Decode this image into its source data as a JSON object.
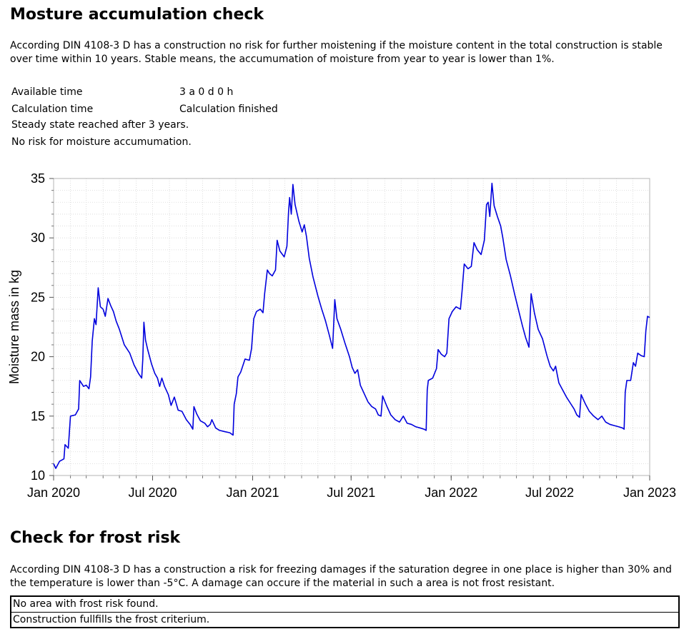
{
  "moisture": {
    "title": "Mosture accumulation check",
    "description": "According DIN 4108-3 D has a construction no risk for further moistening if the moisture content in the total construction is stable over time within 10 years. Stable means, the accumumation of moisture from year to year is lower than 1%.",
    "available_time_label": "Available time",
    "available_time_value": "3 a 0 d 0 h",
    "calc_time_label": "Calculation time",
    "calc_time_value": "Calculation finished",
    "steady_state": "Steady state reached after 3 years.",
    "risk_result": "No risk for moisture accumumation."
  },
  "chart_data": {
    "type": "line",
    "ylabel": "Moisture mass in kg",
    "xlabel": "",
    "ylim": [
      10,
      35
    ],
    "yticks": [
      10,
      15,
      20,
      25,
      30,
      35
    ],
    "x_range": [
      "2020-01-01",
      "2023-01-01"
    ],
    "x_ticks": [
      {
        "date": "2020-01-01",
        "label": "Jan 2020"
      },
      {
        "date": "2020-07-01",
        "label": "Jul 2020"
      },
      {
        "date": "2021-01-01",
        "label": "Jan 2021"
      },
      {
        "date": "2021-07-01",
        "label": "Jul 2021"
      },
      {
        "date": "2022-01-01",
        "label": "Jan 2022"
      },
      {
        "date": "2022-07-01",
        "label": "Jul 2022"
      },
      {
        "date": "2023-01-01",
        "label": "Jan 2023"
      }
    ],
    "grid": true,
    "line_color": "#0000dd",
    "series": [
      {
        "points": [
          [
            "2020-01-01",
            11.0
          ],
          [
            "2020-01-05",
            10.6
          ],
          [
            "2020-01-12",
            11.2
          ],
          [
            "2020-01-20",
            11.4
          ],
          [
            "2020-01-22",
            12.6
          ],
          [
            "2020-01-28",
            12.3
          ],
          [
            "2020-02-01",
            15.0
          ],
          [
            "2020-02-10",
            15.1
          ],
          [
            "2020-02-16",
            15.6
          ],
          [
            "2020-02-18",
            18.0
          ],
          [
            "2020-02-25",
            17.5
          ],
          [
            "2020-03-01",
            17.6
          ],
          [
            "2020-03-06",
            17.3
          ],
          [
            "2020-03-09",
            18.3
          ],
          [
            "2020-03-12",
            21.3
          ],
          [
            "2020-03-16",
            23.2
          ],
          [
            "2020-03-19",
            22.7
          ],
          [
            "2020-03-23",
            25.8
          ],
          [
            "2020-03-27",
            24.2
          ],
          [
            "2020-04-01",
            24.0
          ],
          [
            "2020-04-05",
            23.4
          ],
          [
            "2020-04-10",
            24.9
          ],
          [
            "2020-04-15",
            24.3
          ],
          [
            "2020-04-20",
            23.8
          ],
          [
            "2020-04-25",
            23.0
          ],
          [
            "2020-05-01",
            22.3
          ],
          [
            "2020-05-10",
            21.0
          ],
          [
            "2020-05-20",
            20.3
          ],
          [
            "2020-05-28",
            19.3
          ],
          [
            "2020-06-05",
            18.6
          ],
          [
            "2020-06-11",
            18.2
          ],
          [
            "2020-06-13",
            19.8
          ],
          [
            "2020-06-15",
            22.9
          ],
          [
            "2020-06-18",
            21.4
          ],
          [
            "2020-06-22",
            20.6
          ],
          [
            "2020-06-29",
            19.4
          ],
          [
            "2020-07-05",
            18.6
          ],
          [
            "2020-07-10",
            18.2
          ],
          [
            "2020-07-14",
            17.5
          ],
          [
            "2020-07-18",
            18.2
          ],
          [
            "2020-07-23",
            17.5
          ],
          [
            "2020-07-30",
            16.8
          ],
          [
            "2020-08-04",
            15.9
          ],
          [
            "2020-08-10",
            16.6
          ],
          [
            "2020-08-17",
            15.5
          ],
          [
            "2020-08-24",
            15.4
          ],
          [
            "2020-09-01",
            14.7
          ],
          [
            "2020-09-08",
            14.3
          ],
          [
            "2020-09-13",
            13.9
          ],
          [
            "2020-09-15",
            15.8
          ],
          [
            "2020-09-20",
            15.2
          ],
          [
            "2020-09-27",
            14.6
          ],
          [
            "2020-10-05",
            14.4
          ],
          [
            "2020-10-10",
            14.1
          ],
          [
            "2020-10-15",
            14.3
          ],
          [
            "2020-10-18",
            14.7
          ],
          [
            "2020-10-25",
            14.0
          ],
          [
            "2020-11-01",
            13.8
          ],
          [
            "2020-11-10",
            13.7
          ],
          [
            "2020-11-20",
            13.6
          ],
          [
            "2020-11-26",
            13.4
          ],
          [
            "2020-11-28",
            16.0
          ],
          [
            "2020-12-02",
            16.9
          ],
          [
            "2020-12-05",
            18.3
          ],
          [
            "2020-12-10",
            18.7
          ],
          [
            "2020-12-18",
            19.8
          ],
          [
            "2020-12-26",
            19.7
          ],
          [
            "2020-12-30",
            20.7
          ],
          [
            "2021-01-03",
            23.2
          ],
          [
            "2021-01-08",
            23.8
          ],
          [
            "2021-01-15",
            24.0
          ],
          [
            "2021-01-20",
            23.7
          ],
          [
            "2021-01-23",
            25.3
          ],
          [
            "2021-01-28",
            27.3
          ],
          [
            "2021-02-01",
            27.0
          ],
          [
            "2021-02-06",
            26.8
          ],
          [
            "2021-02-12",
            27.3
          ],
          [
            "2021-02-15",
            29.8
          ],
          [
            "2021-02-20",
            28.9
          ],
          [
            "2021-02-28",
            28.4
          ],
          [
            "2021-03-05",
            29.3
          ],
          [
            "2021-03-08",
            32.2
          ],
          [
            "2021-03-10",
            33.4
          ],
          [
            "2021-03-13",
            32.0
          ],
          [
            "2021-03-16",
            34.5
          ],
          [
            "2021-03-20",
            32.8
          ],
          [
            "2021-03-27",
            31.4
          ],
          [
            "2021-04-02",
            30.5
          ],
          [
            "2021-04-06",
            31.1
          ],
          [
            "2021-04-10",
            30.1
          ],
          [
            "2021-04-15",
            28.3
          ],
          [
            "2021-04-22",
            26.7
          ],
          [
            "2021-05-01",
            25.1
          ],
          [
            "2021-05-08",
            24.0
          ],
          [
            "2021-05-15",
            23.0
          ],
          [
            "2021-05-22",
            21.8
          ],
          [
            "2021-05-28",
            20.7
          ],
          [
            "2021-06-01",
            24.8
          ],
          [
            "2021-06-05",
            23.2
          ],
          [
            "2021-06-12",
            22.3
          ],
          [
            "2021-06-20",
            21.1
          ],
          [
            "2021-06-28",
            20.0
          ],
          [
            "2021-07-03",
            19.1
          ],
          [
            "2021-07-08",
            18.6
          ],
          [
            "2021-07-13",
            18.9
          ],
          [
            "2021-07-18",
            17.6
          ],
          [
            "2021-07-25",
            16.9
          ],
          [
            "2021-08-01",
            16.2
          ],
          [
            "2021-08-08",
            15.8
          ],
          [
            "2021-08-15",
            15.6
          ],
          [
            "2021-08-20",
            15.1
          ],
          [
            "2021-08-25",
            15.0
          ],
          [
            "2021-08-28",
            16.7
          ],
          [
            "2021-09-05",
            15.8
          ],
          [
            "2021-09-12",
            15.1
          ],
          [
            "2021-09-20",
            14.7
          ],
          [
            "2021-09-28",
            14.5
          ],
          [
            "2021-10-05",
            15.0
          ],
          [
            "2021-10-12",
            14.4
          ],
          [
            "2021-10-20",
            14.3
          ],
          [
            "2021-10-28",
            14.1
          ],
          [
            "2021-11-05",
            14.0
          ],
          [
            "2021-11-12",
            13.9
          ],
          [
            "2021-11-16",
            13.8
          ],
          [
            "2021-11-18",
            17.2
          ],
          [
            "2021-11-20",
            18.0
          ],
          [
            "2021-11-28",
            18.2
          ],
          [
            "2021-12-05",
            19.0
          ],
          [
            "2021-12-08",
            20.6
          ],
          [
            "2021-12-14",
            20.2
          ],
          [
            "2021-12-20",
            20.0
          ],
          [
            "2021-12-24",
            20.3
          ],
          [
            "2021-12-28",
            23.2
          ],
          [
            "2022-01-03",
            23.8
          ],
          [
            "2022-01-10",
            24.2
          ],
          [
            "2022-01-18",
            24.0
          ],
          [
            "2022-01-21",
            25.5
          ],
          [
            "2022-01-25",
            27.8
          ],
          [
            "2022-02-01",
            27.4
          ],
          [
            "2022-02-07",
            27.6
          ],
          [
            "2022-02-12",
            29.6
          ],
          [
            "2022-02-18",
            29.0
          ],
          [
            "2022-02-25",
            28.6
          ],
          [
            "2022-03-03",
            29.8
          ],
          [
            "2022-03-07",
            32.8
          ],
          [
            "2022-03-10",
            33.0
          ],
          [
            "2022-03-13",
            31.8
          ],
          [
            "2022-03-17",
            34.6
          ],
          [
            "2022-03-21",
            32.7
          ],
          [
            "2022-03-27",
            31.8
          ],
          [
            "2022-04-02",
            31.0
          ],
          [
            "2022-04-06",
            30.0
          ],
          [
            "2022-04-12",
            28.2
          ],
          [
            "2022-04-20",
            26.8
          ],
          [
            "2022-04-28",
            25.2
          ],
          [
            "2022-05-05",
            23.9
          ],
          [
            "2022-05-12",
            22.6
          ],
          [
            "2022-05-18",
            21.6
          ],
          [
            "2022-05-24",
            20.8
          ],
          [
            "2022-05-28",
            25.3
          ],
          [
            "2022-06-03",
            23.7
          ],
          [
            "2022-06-10",
            22.3
          ],
          [
            "2022-06-18",
            21.5
          ],
          [
            "2022-06-26",
            20.1
          ],
          [
            "2022-07-02",
            19.2
          ],
          [
            "2022-07-08",
            18.8
          ],
          [
            "2022-07-12",
            19.2
          ],
          [
            "2022-07-18",
            17.8
          ],
          [
            "2022-07-25",
            17.2
          ],
          [
            "2022-08-01",
            16.6
          ],
          [
            "2022-08-08",
            16.1
          ],
          [
            "2022-08-15",
            15.6
          ],
          [
            "2022-08-20",
            15.1
          ],
          [
            "2022-08-25",
            14.9
          ],
          [
            "2022-08-28",
            16.8
          ],
          [
            "2022-09-05",
            16.0
          ],
          [
            "2022-09-12",
            15.4
          ],
          [
            "2022-09-20",
            15.0
          ],
          [
            "2022-09-28",
            14.7
          ],
          [
            "2022-10-05",
            15.0
          ],
          [
            "2022-10-12",
            14.5
          ],
          [
            "2022-10-20",
            14.3
          ],
          [
            "2022-10-28",
            14.2
          ],
          [
            "2022-11-05",
            14.1
          ],
          [
            "2022-11-12",
            14.0
          ],
          [
            "2022-11-15",
            13.9
          ],
          [
            "2022-11-17",
            17.0
          ],
          [
            "2022-11-20",
            18.0
          ],
          [
            "2022-11-27",
            18.0
          ],
          [
            "2022-12-02",
            19.5
          ],
          [
            "2022-12-06",
            19.2
          ],
          [
            "2022-12-10",
            20.3
          ],
          [
            "2022-12-16",
            20.1
          ],
          [
            "2022-12-22",
            20.0
          ],
          [
            "2022-12-25",
            22.2
          ],
          [
            "2022-12-28",
            23.4
          ],
          [
            "2023-01-01",
            23.3
          ]
        ]
      }
    ]
  },
  "frost": {
    "title": "Check for frost risk",
    "description": "According DIN 4108-3 D has a construction a risk for freezing damages if the saturation degree in one place is higher than 30% and the temperature is lower than -5°C. A damage can occure if the material in such a area is not frost resistant.",
    "rows": [
      "No area with frost risk found.",
      "Construction fullfills the frost criterium."
    ]
  }
}
